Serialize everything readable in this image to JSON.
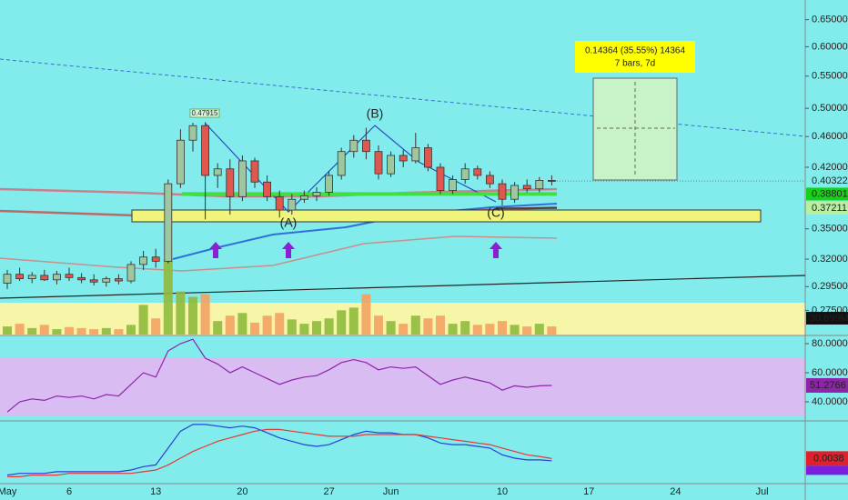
{
  "chart_data": {
    "type": "candlestick",
    "categories": [
      "May",
      null,
      null,
      null,
      null,
      "6",
      null,
      null,
      null,
      null,
      null,
      null,
      "13",
      null,
      null,
      null,
      null,
      null,
      null,
      "20",
      null,
      null,
      null,
      null,
      null,
      null,
      "27",
      null,
      null,
      null,
      null,
      "Jun",
      null,
      null,
      null,
      null,
      null,
      null,
      null,
      null,
      "10",
      null,
      null,
      null,
      null,
      null,
      null,
      "17",
      null,
      null,
      null,
      null,
      null,
      null,
      "24",
      null,
      null,
      null,
      null,
      null,
      null,
      "Jul",
      null,
      null
    ],
    "open": [
      0.298,
      0.306,
      0.302,
      0.305,
      0.301,
      0.306,
      0.303,
      0.301,
      0.299,
      0.302,
      0.3,
      0.315,
      0.322,
      0.318,
      0.4,
      0.455,
      0.475,
      0.41,
      0.418,
      0.385,
      0.428,
      0.402,
      0.385,
      0.37,
      0.382,
      0.386,
      0.39,
      0.41,
      0.44,
      0.455,
      0.44,
      0.412,
      0.435,
      0.428,
      0.445,
      0.42,
      0.392,
      0.405,
      0.418,
      0.41,
      0.4,
      0.382,
      0.398,
      0.394,
      0.404,
      null,
      null,
      null,
      null,
      null,
      null,
      null,
      null,
      null,
      null,
      null,
      null,
      null,
      null,
      null,
      null,
      null,
      null,
      null
    ],
    "high": [
      0.31,
      0.312,
      0.308,
      0.31,
      0.309,
      0.312,
      0.307,
      0.306,
      0.304,
      0.306,
      0.318,
      0.328,
      0.33,
      0.405,
      0.47,
      0.479,
      0.48,
      0.425,
      0.43,
      0.435,
      0.432,
      0.41,
      0.392,
      0.388,
      0.392,
      0.396,
      0.415,
      0.445,
      0.462,
      0.472,
      0.448,
      0.44,
      0.442,
      0.465,
      0.45,
      0.425,
      0.41,
      0.425,
      0.422,
      0.415,
      0.405,
      0.402,
      0.405,
      0.408,
      0.41,
      null,
      null,
      null,
      null,
      null,
      null,
      null,
      null,
      null,
      null,
      null,
      null,
      null,
      null,
      null,
      null,
      null,
      null,
      null
    ],
    "low": [
      0.293,
      0.3,
      0.298,
      0.3,
      0.297,
      0.3,
      0.298,
      0.296,
      0.295,
      0.297,
      0.298,
      0.31,
      0.312,
      0.316,
      0.395,
      0.44,
      0.36,
      0.395,
      0.365,
      0.38,
      0.395,
      0.38,
      0.362,
      0.365,
      0.378,
      0.38,
      0.386,
      0.405,
      0.432,
      0.43,
      0.405,
      0.408,
      0.42,
      0.425,
      0.415,
      0.388,
      0.388,
      0.4,
      0.405,
      0.395,
      0.375,
      0.378,
      0.39,
      0.39,
      0.398,
      null,
      null,
      null,
      null,
      null,
      null,
      null,
      null,
      null,
      null,
      null,
      null,
      null,
      null,
      null,
      null,
      null,
      null,
      null
    ],
    "close": [
      0.306,
      0.302,
      0.305,
      0.301,
      0.306,
      0.303,
      0.301,
      0.299,
      0.302,
      0.3,
      0.315,
      0.322,
      0.318,
      0.4,
      0.455,
      0.475,
      0.41,
      0.418,
      0.385,
      0.428,
      0.402,
      0.385,
      0.37,
      0.382,
      0.386,
      0.39,
      0.41,
      0.44,
      0.455,
      0.44,
      0.412,
      0.435,
      0.428,
      0.445,
      0.42,
      0.392,
      0.405,
      0.418,
      0.41,
      0.4,
      0.382,
      0.398,
      0.394,
      0.404,
      0.40322,
      null,
      null,
      null,
      null,
      null,
      null,
      null,
      null,
      null,
      null,
      null,
      null,
      null,
      null,
      null,
      null,
      null,
      null,
      null
    ],
    "volume": [
      15,
      20,
      12,
      18,
      10,
      14,
      12,
      10,
      12,
      10,
      18,
      55,
      30,
      140,
      80,
      70,
      75,
      25,
      35,
      40,
      22,
      35,
      40,
      28,
      20,
      25,
      30,
      45,
      50,
      75,
      35,
      25,
      20,
      35,
      30,
      35,
      20,
      25,
      18,
      20,
      25,
      18,
      15,
      20,
      15,
      null,
      null,
      null,
      null,
      null,
      null,
      null,
      null,
      null,
      null,
      null,
      null,
      null,
      null,
      null,
      null,
      null,
      null,
      null
    ],
    "log_scale": true,
    "ylim": [
      0.256,
      0.689
    ],
    "yticks": [
      {
        "value": 0.65,
        "label": "0.65000"
      },
      {
        "value": 0.6,
        "label": "0.60000"
      },
      {
        "value": 0.55,
        "label": "0.55000"
      },
      {
        "value": 0.5,
        "label": "0.50000"
      },
      {
        "value": 0.46,
        "label": "0.46000"
      },
      {
        "value": 0.42,
        "label": "0.42000"
      },
      {
        "value": 0.35,
        "label": "0.35000"
      },
      {
        "value": 0.32,
        "label": "0.32000"
      },
      {
        "value": 0.295,
        "label": "0.29500"
      },
      {
        "value": 0.275,
        "label": "0.27500"
      }
    ],
    "colors": {
      "up": "#9fc79f",
      "down": "#e0574f",
      "volume_up": "#8fba3c",
      "volume_down": "#f4a261"
    },
    "levels": [
      0.38801,
      0.37211
    ],
    "peak_label": 0.47915,
    "wave_labels": [
      "(A)",
      "(B)",
      "(C)"
    ],
    "measure_labels": [
      "0.14364 (35.55%) 14364",
      "7 bars, 7d"
    ],
    "volume_label": "30.699M",
    "rsi": {
      "color": "#8e24aa",
      "ylim": [
        27.5,
        85
      ],
      "yticks": [
        {
          "value": 80,
          "label": "80.0000"
        },
        {
          "value": 60,
          "label": "60.0000"
        },
        {
          "value": 40,
          "label": "40.0000"
        }
      ],
      "values": [
        33,
        40,
        42,
        41,
        44,
        43,
        44,
        42,
        45,
        44,
        52,
        60,
        57,
        75,
        80,
        83,
        70,
        66,
        60,
        64,
        60,
        56,
        52,
        55,
        57,
        58,
        62,
        67,
        69,
        67,
        62,
        64,
        63,
        64,
        58,
        52,
        55,
        57,
        55,
        53,
        48,
        51,
        50,
        51,
        51.2766,
        null,
        null,
        null,
        null,
        null,
        null,
        null,
        null,
        null,
        null,
        null,
        null,
        null,
        null,
        null,
        null,
        null,
        null,
        null
      ]
    },
    "macd": {
      "ylim": [
        -0.01,
        0.025
      ],
      "colors": [
        "#2a3fd6",
        "#e53935"
      ],
      "macd": [
        -0.006,
        -0.005,
        -0.005,
        -0.005,
        -0.004,
        -0.004,
        -0.004,
        -0.004,
        -0.004,
        -0.004,
        -0.003,
        -0.001,
        0.0,
        0.01,
        0.02,
        0.024,
        0.024,
        0.023,
        0.022,
        0.023,
        0.022,
        0.019,
        0.016,
        0.014,
        0.012,
        0.011,
        0.012,
        0.015,
        0.018,
        0.02,
        0.019,
        0.019,
        0.018,
        0.018,
        0.016,
        0.013,
        0.012,
        0.012,
        0.011,
        0.01,
        0.006,
        0.004,
        0.003,
        0.003,
        0.0025,
        null,
        null,
        null,
        null,
        null,
        null,
        null,
        null,
        null,
        null,
        null,
        null,
        null,
        null,
        null,
        null,
        null,
        null,
        null
      ],
      "signal": [
        -0.007,
        -0.007,
        -0.006,
        -0.006,
        -0.006,
        -0.005,
        -0.005,
        -0.005,
        -0.005,
        -0.005,
        -0.005,
        -0.004,
        -0.003,
        0.0,
        0.004,
        0.008,
        0.011,
        0.014,
        0.016,
        0.018,
        0.02,
        0.021,
        0.021,
        0.02,
        0.019,
        0.018,
        0.017,
        0.017,
        0.017,
        0.018,
        0.018,
        0.018,
        0.018,
        0.018,
        0.017,
        0.016,
        0.015,
        0.014,
        0.013,
        0.012,
        0.01,
        0.008,
        0.006,
        0.005,
        0.0038,
        null,
        null,
        null,
        null,
        null,
        null,
        null,
        null,
        null,
        null,
        null,
        null,
        null,
        null,
        null,
        null,
        null,
        null,
        null
      ]
    }
  }
}
